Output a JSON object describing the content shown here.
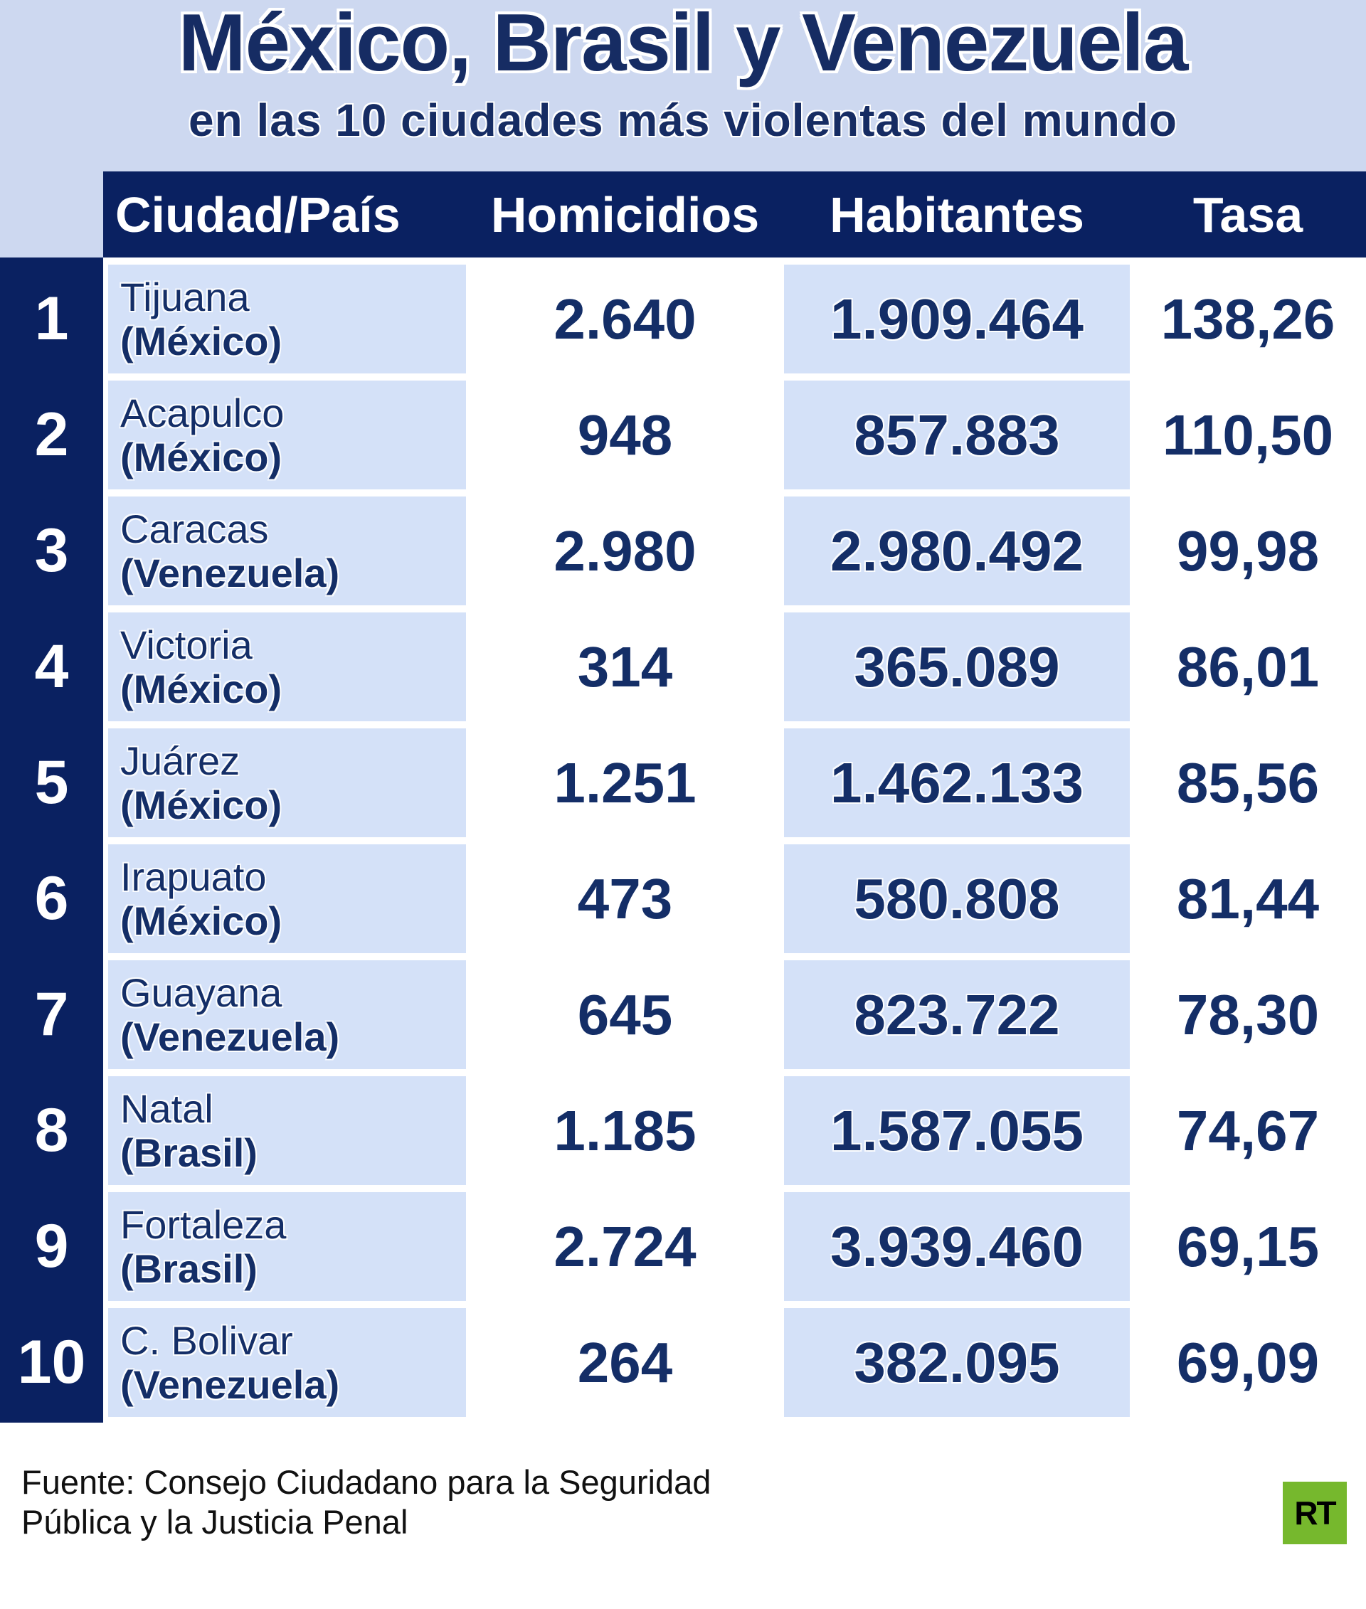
{
  "title": "México, Brasil y Venezuela",
  "subtitle": "en las 10 ciudades más violentas del mundo",
  "colors": {
    "navy_fill": "#0a2161",
    "text_navy": "#142e67",
    "background_blue": "#cdd8f0",
    "cell_blue": "#d4e1f8",
    "logo_green": "#76b82d",
    "footer_text": "#111111"
  },
  "table": {
    "headers": [
      "Ciudad/País",
      "Homicidios",
      "Habitantes",
      "Tasa"
    ],
    "rows": [
      {
        "rank": "1",
        "city": "Tijuana",
        "country": "(México)",
        "homicides": "2.640",
        "population": "1.909.464",
        "rate": "138,26"
      },
      {
        "rank": "2",
        "city": "Acapulco",
        "country": "(México)",
        "homicides": "948",
        "population": "857.883",
        "rate": "110,50"
      },
      {
        "rank": "3",
        "city": "Caracas",
        "country": "(Venezuela)",
        "homicides": "2.980",
        "population": "2.980.492",
        "rate": "99,98"
      },
      {
        "rank": "4",
        "city": "Victoria",
        "country": "(México)",
        "homicides": "314",
        "population": "365.089",
        "rate": "86,01"
      },
      {
        "rank": "5",
        "city": "Juárez",
        "country": "(México)",
        "homicides": "1.251",
        "population": "1.462.133",
        "rate": "85,56"
      },
      {
        "rank": "6",
        "city": "Irapuato",
        "country": "(México)",
        "homicides": "473",
        "population": "580.808",
        "rate": "81,44"
      },
      {
        "rank": "7",
        "city": "Guayana",
        "country": "(Venezuela)",
        "homicides": "645",
        "population": "823.722",
        "rate": "78,30"
      },
      {
        "rank": "8",
        "city": "Natal",
        "country": "(Brasil)",
        "homicides": "1.185",
        "population": "1.587.055",
        "rate": "74,67"
      },
      {
        "rank": "9",
        "city": "Fortaleza",
        "country": "(Brasil)",
        "homicides": "2.724",
        "population": "3.939.460",
        "rate": "69,15"
      },
      {
        "rank": "10",
        "city": "C. Bolivar",
        "country": "(Venezuela)",
        "homicides": "264",
        "population": "382.095",
        "rate": "69,09"
      }
    ]
  },
  "footer": {
    "source_lines": [
      "Fuente: Consejo Ciudadano para la Seguridad",
      "Pública y la Justicia Penal"
    ],
    "logo_text": "RT"
  },
  "chart_data": {
    "type": "table",
    "title": "México, Brasil y Venezuela en las 10 ciudades más violentas del mundo",
    "columns": [
      "Ciudad/País",
      "Homicidios",
      "Habitantes",
      "Tasa"
    ],
    "rows": [
      [
        "Tijuana (México)",
        2640,
        1909464,
        138.26
      ],
      [
        "Acapulco (México)",
        948,
        857883,
        110.5
      ],
      [
        "Caracas (Venezuela)",
        2980,
        2980492,
        99.98
      ],
      [
        "Victoria (México)",
        314,
        365089,
        86.01
      ],
      [
        "Juárez (México)",
        1251,
        1462133,
        85.56
      ],
      [
        "Irapuato (México)",
        473,
        580808,
        81.44
      ],
      [
        "Guayana (Venezuela)",
        645,
        823722,
        78.3
      ],
      [
        "Natal (Brasil)",
        1185,
        1587055,
        74.67
      ],
      [
        "Fortaleza (Brasil)",
        2724,
        3939460,
        69.15
      ],
      [
        "C. Bolivar (Venezuela)",
        264,
        382095,
        69.09
      ]
    ],
    "source": "Fuente: Consejo Ciudadano para la Seguridad Pública y la Justicia Penal"
  }
}
